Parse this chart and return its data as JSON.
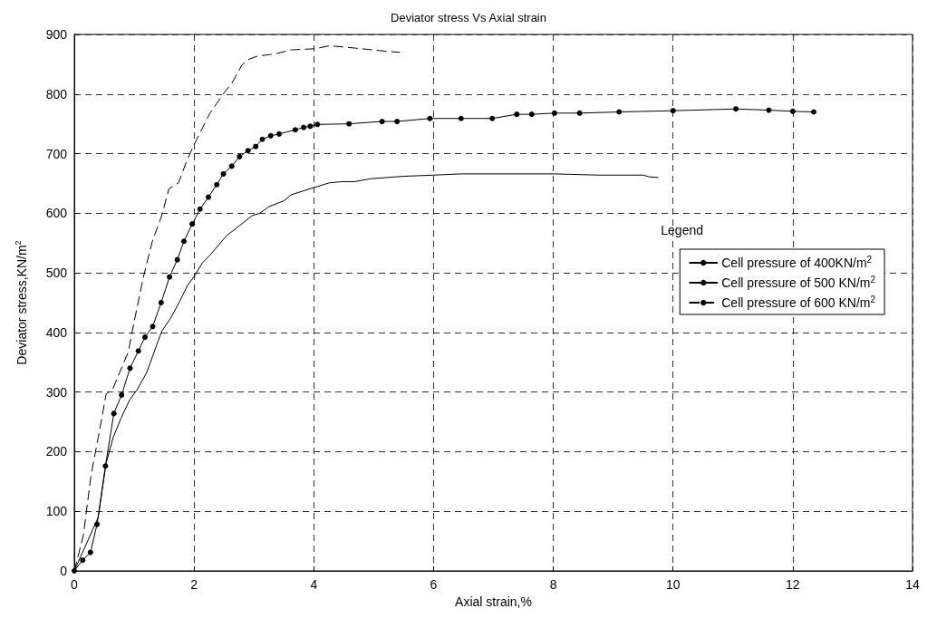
{
  "chart_data": {
    "type": "line",
    "title": "Deviator stress Vs Axial strain",
    "xlabel": "Axial strain,%",
    "ylabel": "Deviator stress,KN/m$^{2}$",
    "legend_title": "Legend",
    "xlim": [
      0,
      14
    ],
    "xticks": [
      0,
      2,
      4,
      6,
      8,
      10,
      12,
      14
    ],
    "ylim": [
      0,
      900
    ],
    "yticks": [
      0,
      100,
      200,
      300,
      400,
      500,
      600,
      700,
      800,
      900
    ],
    "grid": true,
    "legend": "right",
    "series": [
      {
        "name": "Cell pressure of 400KN/m$^{2}$",
        "color": "#000000",
        "marker": "none",
        "line_style": "solid",
        "x": [
          0,
          0.4,
          0.53,
          0.65,
          0.78,
          0.93,
          1.05,
          1.21,
          1.46,
          1.61,
          1.76,
          1.89,
          2.01,
          2.14,
          2.26,
          2.54,
          2.82,
          2.97,
          3.1,
          3.25,
          3.5,
          3.62,
          4.0,
          4.26,
          4.46,
          4.68,
          4.96,
          5.5,
          6.0,
          6.46,
          8.03,
          8.76,
          9.5,
          9.6,
          9.75
        ],
        "values": [
          0,
          90,
          180,
          224,
          256,
          288,
          304,
          333,
          402,
          424,
          452,
          479,
          495,
          517,
          529,
          562,
          584,
          596,
          600,
          611,
          621,
          631,
          643,
          651,
          653,
          653,
          658,
          662,
          664,
          666,
          666,
          664,
          664,
          661,
          660
        ]
      },
      {
        "name": "Cell pressure of 500 KN/m$^{2}$",
        "color": "#000000",
        "marker": "circle",
        "line_style": "solid",
        "x": [
          0,
          0.14,
          0.27,
          0.38,
          0.52,
          0.66,
          0.79,
          0.93,
          1.07,
          1.18,
          1.31,
          1.45,
          1.59,
          1.72,
          1.83,
          1.97,
          2.1,
          2.24,
          2.38,
          2.49,
          2.63,
          2.76,
          2.9,
          3.03,
          3.14,
          3.28,
          3.42,
          3.69,
          3.83,
          3.94,
          4.06,
          4.59,
          5.14,
          5.39,
          5.94,
          6.46,
          6.98,
          7.39,
          7.64,
          8.02,
          8.44,
          9.1,
          10.0,
          11.05,
          11.6,
          12.0,
          12.35
        ],
        "values": [
          0,
          18,
          31,
          78,
          176,
          264,
          295,
          340,
          369,
          392,
          410,
          450,
          493,
          522,
          553,
          582,
          607,
          627,
          648,
          666,
          679,
          695,
          705,
          712,
          724,
          730,
          733,
          740,
          744,
          746,
          749,
          750,
          754,
          754,
          759,
          759,
          759,
          766,
          766,
          768,
          768,
          770,
          772,
          775,
          773,
          771,
          770
        ]
      },
      {
        "name": "Cell pressure of 600 KN/m$^{2}$",
        "color": "#000000",
        "marker": "none",
        "line_style": "dashed",
        "x": [
          0,
          0.15,
          0.28,
          0.4,
          0.53,
          0.65,
          0.77,
          0.9,
          1.02,
          1.15,
          1.3,
          1.46,
          1.58,
          1.74,
          1.89,
          2.04,
          2.26,
          2.48,
          2.63,
          2.79,
          2.88,
          3.07,
          3.25,
          3.38,
          3.62,
          4.02,
          4.26,
          4.7,
          5.18,
          5.43
        ],
        "values": [
          0,
          59,
          161,
          224,
          296,
          307,
          336,
          367,
          428,
          491,
          552,
          596,
          641,
          651,
          691,
          723,
          767,
          799,
          818,
          847,
          857,
          864,
          866,
          868,
          874,
          876,
          881,
          877,
          872,
          870
        ]
      }
    ]
  }
}
